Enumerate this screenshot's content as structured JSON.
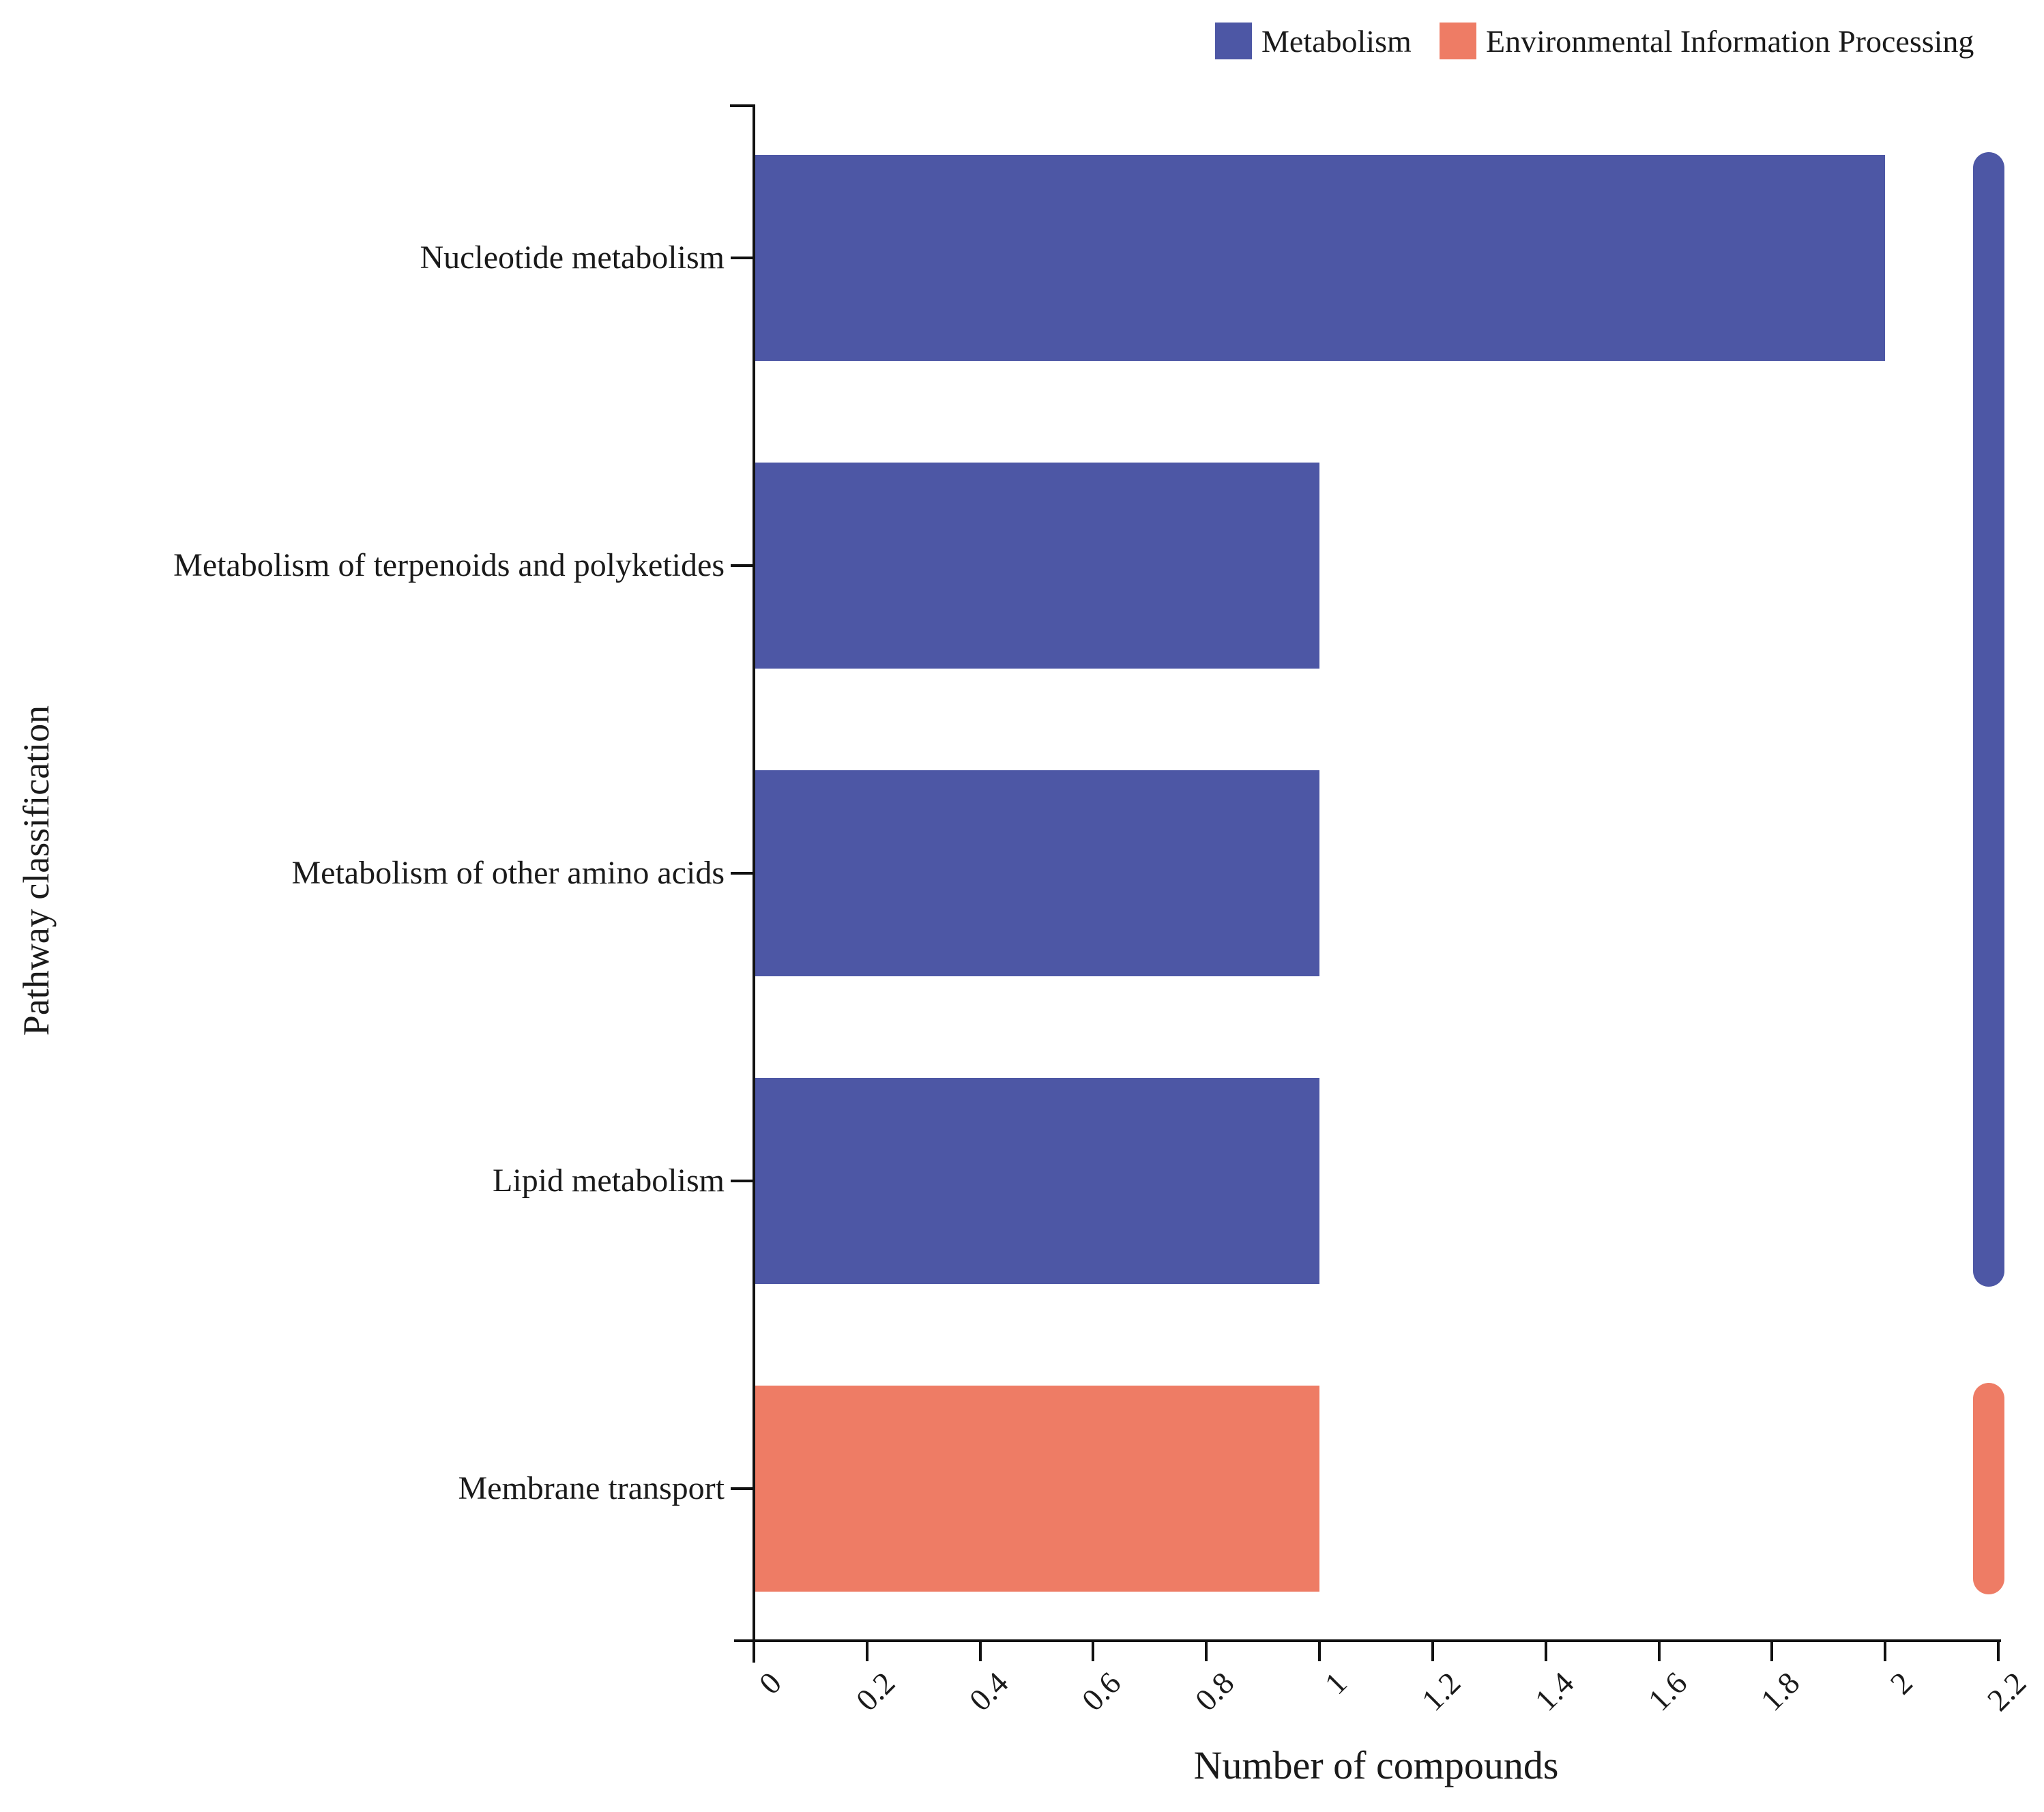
{
  "figure": {
    "background": "#ffffff",
    "axis_color": "#111111",
    "text_color": "#1a1a1a"
  },
  "legend": {
    "position": "top-right",
    "items": [
      {
        "label": "Metabolism",
        "color": "#4D57A5"
      },
      {
        "label": "Environmental Information Processing",
        "color": "#EE7C65"
      }
    ]
  },
  "chart_data": {
    "type": "bar",
    "orientation": "horizontal",
    "title": "",
    "xlabel": "Number of compounds",
    "ylabel": "Pathway classification",
    "xlim": [
      0,
      2.2
    ],
    "xticks": [
      0,
      0.2,
      0.4,
      0.6,
      0.8,
      1,
      1.2,
      1.4,
      1.6,
      1.8,
      2,
      2.2
    ],
    "xtick_labels": [
      "0",
      "0.2",
      "0.4",
      "0.6",
      "0.8",
      "1",
      "1.2",
      "1.4",
      "1.6",
      "1.8",
      "2",
      "2.2"
    ],
    "grid": false,
    "categories": [
      "Nucleotide metabolism",
      "Metabolism of terpenoids and polyketides",
      "Metabolism of other amino acids",
      "Lipid metabolism",
      "Membrane transport"
    ],
    "bars": [
      {
        "category": "Nucleotide metabolism",
        "value": 2,
        "group": "Metabolism"
      },
      {
        "category": "Metabolism of terpenoids and polyketides",
        "value": 1,
        "group": "Metabolism"
      },
      {
        "category": "Metabolism of other amino acids",
        "value": 1,
        "group": "Metabolism"
      },
      {
        "category": "Lipid metabolism",
        "value": 1,
        "group": "Metabolism"
      },
      {
        "category": "Membrane transport",
        "value": 1,
        "group": "Environmental Information Processing"
      }
    ],
    "group_colors": {
      "Metabolism": "#4D57A5",
      "Environmental Information Processing": "#EE7C65"
    },
    "group_strips": [
      {
        "group": "Metabolism",
        "first_row": 0,
        "last_row": 3
      },
      {
        "group": "Environmental Information Processing",
        "first_row": 4,
        "last_row": 4
      }
    ]
  }
}
